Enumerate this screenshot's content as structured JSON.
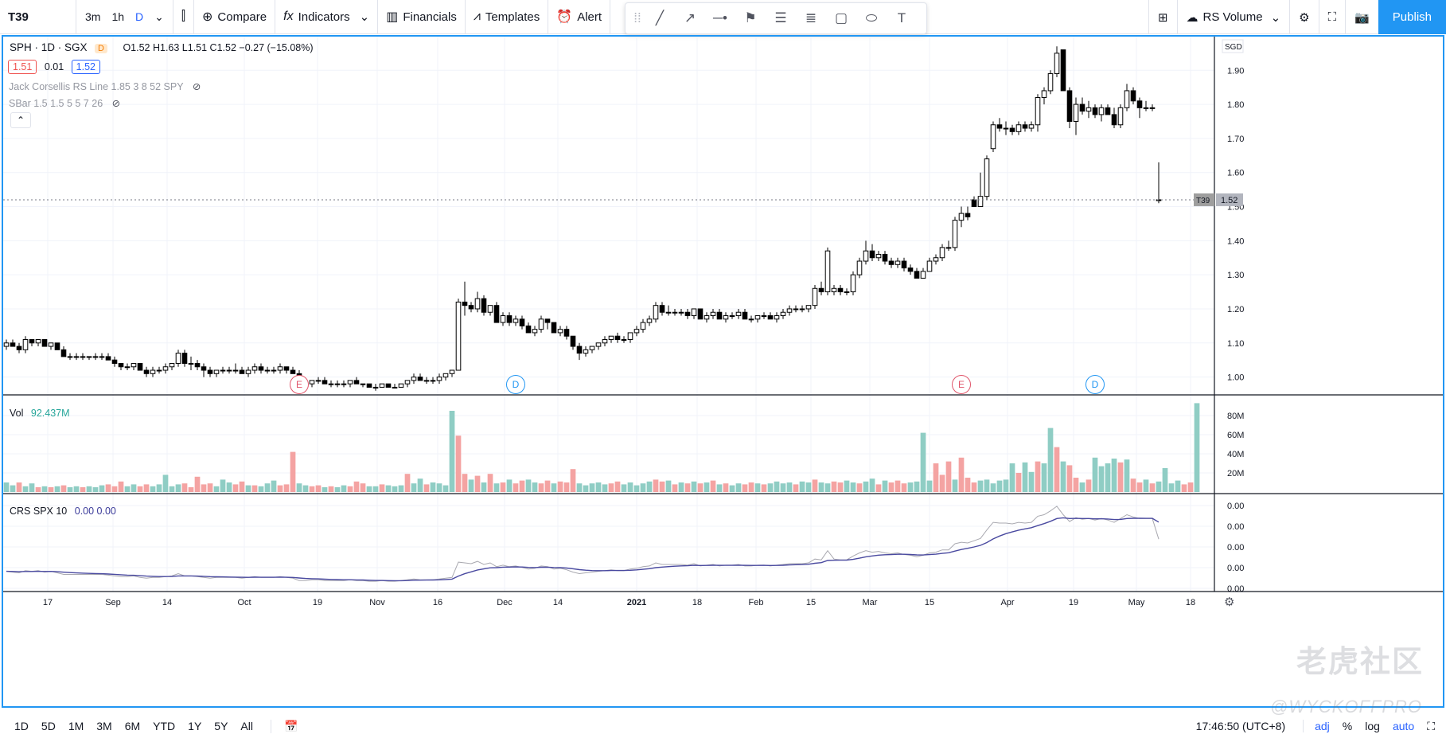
{
  "toolbar": {
    "symbol": "T39",
    "intervals": [
      "3m",
      "1h",
      "D"
    ],
    "compare": "Compare",
    "indicators": "Indicators",
    "financials": "Financials",
    "templates": "Templates",
    "alert": "Alert",
    "rs_volume": "RS Volume",
    "publish": "Publish"
  },
  "legend": {
    "title": "SPH · 1D · SGX",
    "badge": "D",
    "ohlc": "O1.52 H1.63 L1.51 C1.52 −0.27 (−15.08%)",
    "bid": "1.51",
    "spread": "0.01",
    "ask": "1.52",
    "indicator1": "Jack Corsellis RS Line 1.85 3 8 52 SPY",
    "indicator2": "SBar 1.5 1.5 5 5 7 26",
    "vol_label": "Vol",
    "vol_value": "92.437M",
    "crs_label": "CRS SPX 10",
    "crs_values": "0.00  0.00"
  },
  "price_axis": {
    "currency": "SGD",
    "ticks": [
      "1.90",
      "1.80",
      "1.70",
      "1.60",
      "1.50",
      "1.40",
      "1.30",
      "1.20",
      "1.10",
      "1.00"
    ],
    "last_label": "T39",
    "last_value": "1.52"
  },
  "volume_axis": {
    "ticks": [
      "80M",
      "60M",
      "40M",
      "20M"
    ]
  },
  "crs_axis": {
    "ticks": [
      "0.00",
      "0.00",
      "0.00",
      "0.00",
      "0.00"
    ]
  },
  "time_axis": {
    "labels": [
      "17",
      "Sep",
      "14",
      "Oct",
      "19",
      "Nov",
      "16",
      "Dec",
      "14",
      "2021",
      "18",
      "Feb",
      "15",
      "Mar",
      "15",
      "Apr",
      "19",
      "May",
      "18"
    ]
  },
  "events": [
    "E",
    "D",
    "E",
    "D"
  ],
  "bottom": {
    "ranges": [
      "1D",
      "5D",
      "1M",
      "3M",
      "6M",
      "YTD",
      "1Y",
      "5Y",
      "All"
    ],
    "time": "17:46:50 (UTC+8)",
    "adj": "adj",
    "percent": "%",
    "log": "log",
    "auto": "auto"
  },
  "watermark": {
    "text": "老虎社区",
    "handle": "@WYCKOFFPRO"
  },
  "colors": {
    "accent": "#2196f3",
    "up_volume": "#26a69a",
    "down_volume": "#ef5350",
    "crs_line": "#3b3b9a"
  },
  "chart_data": {
    "type": "candlestick",
    "symbol": "T39",
    "price_range": [
      0.95,
      1.98
    ],
    "candles": [
      [
        1.09,
        1.11,
        1.08,
        1.1
      ],
      [
        1.1,
        1.11,
        1.09,
        1.09
      ],
      [
        1.09,
        1.1,
        1.07,
        1.08
      ],
      [
        1.08,
        1.12,
        1.07,
        1.11
      ],
      [
        1.11,
        1.11,
        1.09,
        1.1
      ],
      [
        1.1,
        1.11,
        1.09,
        1.11
      ],
      [
        1.11,
        1.11,
        1.09,
        1.09
      ],
      [
        1.09,
        1.1,
        1.08,
        1.1
      ],
      [
        1.1,
        1.1,
        1.08,
        1.08
      ],
      [
        1.08,
        1.09,
        1.06,
        1.06
      ],
      [
        1.06,
        1.07,
        1.05,
        1.06
      ],
      [
        1.06,
        1.07,
        1.05,
        1.06
      ],
      [
        1.06,
        1.07,
        1.05,
        1.06
      ],
      [
        1.06,
        1.06,
        1.05,
        1.06
      ],
      [
        1.06,
        1.07,
        1.05,
        1.06
      ],
      [
        1.06,
        1.07,
        1.05,
        1.06
      ],
      [
        1.06,
        1.07,
        1.05,
        1.05
      ],
      [
        1.05,
        1.06,
        1.03,
        1.04
      ],
      [
        1.04,
        1.04,
        1.02,
        1.03
      ],
      [
        1.03,
        1.04,
        1.02,
        1.03
      ],
      [
        1.03,
        1.04,
        1.02,
        1.04
      ],
      [
        1.04,
        1.04,
        1.02,
        1.02
      ],
      [
        1.02,
        1.03,
        1.0,
        1.01
      ],
      [
        1.01,
        1.03,
        1.0,
        1.02
      ],
      [
        1.02,
        1.03,
        1.01,
        1.02
      ],
      [
        1.02,
        1.04,
        1.01,
        1.03
      ],
      [
        1.03,
        1.04,
        1.02,
        1.04
      ],
      [
        1.04,
        1.08,
        1.03,
        1.07
      ],
      [
        1.07,
        1.08,
        1.03,
        1.04
      ],
      [
        1.04,
        1.06,
        1.02,
        1.04
      ],
      [
        1.04,
        1.05,
        1.02,
        1.03
      ],
      [
        1.03,
        1.04,
        1.0,
        1.02
      ],
      [
        1.02,
        1.03,
        1.0,
        1.01
      ],
      [
        1.01,
        1.02,
        1.0,
        1.02
      ],
      [
        1.02,
        1.03,
        1.01,
        1.02
      ],
      [
        1.02,
        1.03,
        1.01,
        1.02
      ],
      [
        1.02,
        1.04,
        1.01,
        1.02
      ],
      [
        1.02,
        1.03,
        1.01,
        1.01
      ],
      [
        1.01,
        1.03,
        1.0,
        1.02
      ],
      [
        1.02,
        1.04,
        1.01,
        1.03
      ],
      [
        1.03,
        1.04,
        1.01,
        1.02
      ],
      [
        1.02,
        1.03,
        1.01,
        1.02
      ],
      [
        1.02,
        1.03,
        1.01,
        1.02
      ],
      [
        1.02,
        1.04,
        1.01,
        1.03
      ],
      [
        1.03,
        1.03,
        1.01,
        1.02
      ],
      [
        1.02,
        1.03,
        1.01,
        1.01
      ],
      [
        1.01,
        1.02,
        0.97,
        0.98
      ],
      [
        0.98,
        0.99,
        0.97,
        0.98
      ],
      [
        0.98,
        0.99,
        0.97,
        0.99
      ],
      [
        0.99,
        1.0,
        0.98,
        0.99
      ],
      [
        0.99,
        1.0,
        0.98,
        0.98
      ],
      [
        0.98,
        0.99,
        0.97,
        0.98
      ],
      [
        0.98,
        0.99,
        0.97,
        0.98
      ],
      [
        0.98,
        0.99,
        0.97,
        0.98
      ],
      [
        0.98,
        0.99,
        0.97,
        0.99
      ],
      [
        0.99,
        1.0,
        0.98,
        0.98
      ],
      [
        0.98,
        0.98,
        0.97,
        0.98
      ],
      [
        0.98,
        0.98,
        0.97,
        0.97
      ],
      [
        0.97,
        0.98,
        0.96,
        0.97
      ],
      [
        0.97,
        0.98,
        0.97,
        0.98
      ],
      [
        0.98,
        0.98,
        0.97,
        0.97
      ],
      [
        0.97,
        0.98,
        0.97,
        0.97
      ],
      [
        0.97,
        0.98,
        0.97,
        0.98
      ],
      [
        0.98,
        0.99,
        0.97,
        0.99
      ],
      [
        0.99,
        1.01,
        0.98,
        1.0
      ],
      [
        1.0,
        1.01,
        0.99,
        0.99
      ],
      [
        0.99,
        1.0,
        0.98,
        0.99
      ],
      [
        0.99,
        1.0,
        0.98,
        0.99
      ],
      [
        0.99,
        1.01,
        0.98,
        1.0
      ],
      [
        1.0,
        1.01,
        0.99,
        1.01
      ],
      [
        1.01,
        1.02,
        1.0,
        1.02
      ],
      [
        1.02,
        1.23,
        1.02,
        1.22
      ],
      [
        1.22,
        1.28,
        1.18,
        1.21
      ],
      [
        1.21,
        1.22,
        1.19,
        1.2
      ],
      [
        1.2,
        1.25,
        1.19,
        1.23
      ],
      [
        1.23,
        1.24,
        1.18,
        1.19
      ],
      [
        1.19,
        1.21,
        1.18,
        1.21
      ],
      [
        1.21,
        1.22,
        1.16,
        1.16
      ],
      [
        1.16,
        1.19,
        1.15,
        1.18
      ],
      [
        1.18,
        1.19,
        1.15,
        1.16
      ],
      [
        1.16,
        1.18,
        1.15,
        1.17
      ],
      [
        1.17,
        1.18,
        1.14,
        1.15
      ],
      [
        1.15,
        1.16,
        1.13,
        1.13
      ],
      [
        1.13,
        1.15,
        1.12,
        1.14
      ],
      [
        1.14,
        1.18,
        1.13,
        1.17
      ],
      [
        1.17,
        1.17,
        1.14,
        1.16
      ],
      [
        1.16,
        1.16,
        1.13,
        1.13
      ],
      [
        1.13,
        1.15,
        1.12,
        1.14
      ],
      [
        1.14,
        1.15,
        1.11,
        1.12
      ],
      [
        1.12,
        1.12,
        1.08,
        1.09
      ],
      [
        1.09,
        1.1,
        1.05,
        1.07
      ],
      [
        1.07,
        1.09,
        1.06,
        1.08
      ],
      [
        1.08,
        1.09,
        1.07,
        1.09
      ],
      [
        1.09,
        1.1,
        1.08,
        1.1
      ],
      [
        1.1,
        1.12,
        1.09,
        1.11
      ],
      [
        1.11,
        1.12,
        1.1,
        1.12
      ],
      [
        1.12,
        1.13,
        1.1,
        1.11
      ],
      [
        1.11,
        1.12,
        1.1,
        1.11
      ],
      [
        1.11,
        1.13,
        1.1,
        1.13
      ],
      [
        1.13,
        1.15,
        1.12,
        1.14
      ],
      [
        1.14,
        1.17,
        1.13,
        1.16
      ],
      [
        1.16,
        1.18,
        1.15,
        1.17
      ],
      [
        1.17,
        1.22,
        1.16,
        1.21
      ],
      [
        1.21,
        1.22,
        1.18,
        1.19
      ],
      [
        1.19,
        1.21,
        1.18,
        1.19
      ],
      [
        1.19,
        1.2,
        1.18,
        1.19
      ],
      [
        1.19,
        1.2,
        1.18,
        1.19
      ],
      [
        1.19,
        1.2,
        1.17,
        1.18
      ],
      [
        1.18,
        1.2,
        1.17,
        1.2
      ],
      [
        1.2,
        1.2,
        1.17,
        1.17
      ],
      [
        1.17,
        1.19,
        1.16,
        1.18
      ],
      [
        1.18,
        1.2,
        1.17,
        1.19
      ],
      [
        1.19,
        1.2,
        1.17,
        1.17
      ],
      [
        1.17,
        1.19,
        1.16,
        1.18
      ],
      [
        1.18,
        1.19,
        1.17,
        1.18
      ],
      [
        1.18,
        1.2,
        1.17,
        1.19
      ],
      [
        1.19,
        1.2,
        1.17,
        1.17
      ],
      [
        1.17,
        1.18,
        1.16,
        1.17
      ],
      [
        1.17,
        1.18,
        1.16,
        1.18
      ],
      [
        1.18,
        1.19,
        1.17,
        1.18
      ],
      [
        1.18,
        1.19,
        1.17,
        1.17
      ],
      [
        1.17,
        1.19,
        1.16,
        1.18
      ],
      [
        1.18,
        1.2,
        1.17,
        1.19
      ],
      [
        1.19,
        1.21,
        1.18,
        1.2
      ],
      [
        1.2,
        1.21,
        1.19,
        1.2
      ],
      [
        1.2,
        1.21,
        1.19,
        1.2
      ],
      [
        1.2,
        1.21,
        1.19,
        1.21
      ],
      [
        1.21,
        1.27,
        1.2,
        1.26
      ],
      [
        1.26,
        1.28,
        1.24,
        1.25
      ],
      [
        1.25,
        1.38,
        1.24,
        1.37
      ],
      [
        1.25,
        1.27,
        1.24,
        1.26
      ],
      [
        1.26,
        1.27,
        1.24,
        1.25
      ],
      [
        1.25,
        1.26,
        1.24,
        1.25
      ],
      [
        1.25,
        1.31,
        1.24,
        1.3
      ],
      [
        1.3,
        1.35,
        1.29,
        1.34
      ],
      [
        1.34,
        1.4,
        1.33,
        1.37
      ],
      [
        1.37,
        1.39,
        1.34,
        1.35
      ],
      [
        1.35,
        1.37,
        1.34,
        1.36
      ],
      [
        1.36,
        1.37,
        1.33,
        1.34
      ],
      [
        1.34,
        1.35,
        1.32,
        1.33
      ],
      [
        1.33,
        1.35,
        1.32,
        1.34
      ],
      [
        1.34,
        1.35,
        1.31,
        1.32
      ],
      [
        1.32,
        1.33,
        1.3,
        1.31
      ],
      [
        1.31,
        1.32,
        1.29,
        1.29
      ],
      [
        1.29,
        1.32,
        1.29,
        1.31
      ],
      [
        1.31,
        1.35,
        1.31,
        1.34
      ],
      [
        1.34,
        1.36,
        1.33,
        1.35
      ],
      [
        1.35,
        1.39,
        1.34,
        1.38
      ],
      [
        1.38,
        1.4,
        1.37,
        1.38
      ],
      [
        1.38,
        1.47,
        1.37,
        1.46
      ],
      [
        1.46,
        1.5,
        1.44,
        1.48
      ],
      [
        1.48,
        1.5,
        1.46,
        1.47
      ],
      [
        1.52,
        1.53,
        1.5,
        1.5
      ],
      [
        1.5,
        1.6,
        1.5,
        1.53
      ],
      [
        1.53,
        1.65,
        1.52,
        1.64
      ],
      [
        1.67,
        1.75,
        1.66,
        1.74
      ],
      [
        1.74,
        1.76,
        1.72,
        1.73
      ],
      [
        1.73,
        1.75,
        1.71,
        1.73
      ],
      [
        1.73,
        1.74,
        1.71,
        1.72
      ],
      [
        1.72,
        1.75,
        1.71,
        1.74
      ],
      [
        1.74,
        1.75,
        1.72,
        1.73
      ],
      [
        1.73,
        1.75,
        1.72,
        1.74
      ],
      [
        1.74,
        1.83,
        1.72,
        1.82
      ],
      [
        1.82,
        1.85,
        1.8,
        1.84
      ],
      [
        1.84,
        1.9,
        1.83,
        1.89
      ],
      [
        1.89,
        1.97,
        1.88,
        1.95
      ],
      [
        1.96,
        1.96,
        1.84,
        1.84
      ],
      [
        1.84,
        1.85,
        1.73,
        1.75
      ],
      [
        1.75,
        1.82,
        1.71,
        1.8
      ],
      [
        1.8,
        1.82,
        1.77,
        1.78
      ],
      [
        1.78,
        1.81,
        1.76,
        1.79
      ],
      [
        1.79,
        1.8,
        1.76,
        1.77
      ],
      [
        1.77,
        1.8,
        1.75,
        1.79
      ],
      [
        1.79,
        1.8,
        1.77,
        1.77
      ],
      [
        1.77,
        1.79,
        1.73,
        1.74
      ],
      [
        1.74,
        1.8,
        1.73,
        1.79
      ],
      [
        1.79,
        1.86,
        1.78,
        1.84
      ],
      [
        1.84,
        1.85,
        1.8,
        1.81
      ],
      [
        1.81,
        1.82,
        1.76,
        1.79
      ],
      [
        1.79,
        1.81,
        1.78,
        1.79
      ],
      [
        1.79,
        1.8,
        1.78,
        1.79
      ],
      [
        1.52,
        1.63,
        1.51,
        1.52
      ]
    ],
    "volume_millions": [
      10,
      7,
      10,
      6,
      9,
      5,
      6,
      5,
      6,
      7,
      5,
      6,
      5,
      6,
      5,
      7,
      8,
      6,
      11,
      6,
      8,
      6,
      8,
      6,
      8,
      18,
      6,
      8,
      9,
      5,
      16,
      8,
      9,
      6,
      13,
      10,
      8,
      11,
      7,
      7,
      6,
      9,
      12,
      7,
      8,
      42,
      9,
      7,
      6,
      7,
      5,
      6,
      5,
      7,
      6,
      11,
      9,
      6,
      6,
      8,
      7,
      6,
      7,
      19,
      9,
      14,
      8,
      10,
      9,
      7,
      85,
      59,
      19,
      13,
      17,
      10,
      19,
      9,
      10,
      13,
      9,
      12,
      13,
      10,
      9,
      12,
      9,
      11,
      10,
      24,
      9,
      7,
      9,
      10,
      8,
      9,
      11,
      8,
      10,
      7,
      9,
      11,
      13,
      11,
      12,
      8,
      10,
      9,
      11,
      9,
      10,
      12,
      8,
      9,
      7,
      9,
      8,
      10,
      9,
      8,
      9,
      11,
      9,
      10,
      8,
      11,
      10,
      13,
      10,
      9,
      11,
      10,
      12,
      10,
      9,
      11,
      14,
      8,
      12,
      10,
      12,
      9,
      10,
      11,
      62,
      12,
      30,
      18,
      32,
      13,
      36,
      15,
      10,
      12,
      13,
      9,
      12,
      13,
      30,
      20,
      31,
      21,
      32,
      30,
      67,
      47,
      32,
      28,
      15,
      10,
      13,
      36,
      27,
      30,
      35,
      31,
      34,
      14,
      10,
      13,
      9,
      11,
      25,
      9,
      12,
      8,
      10,
      93
    ],
    "volume_down": [
      false,
      false,
      true,
      false,
      false,
      true,
      false,
      true,
      false,
      true,
      false,
      false,
      true,
      false,
      false,
      false,
      true,
      true,
      true,
      false,
      false,
      true,
      true,
      false,
      false,
      false,
      false,
      false,
      true,
      true,
      true,
      true,
      true,
      false,
      false,
      false,
      true,
      true,
      false,
      true,
      false,
      false,
      false,
      true,
      true,
      true,
      false,
      false,
      true,
      true,
      false,
      true,
      false,
      false,
      true,
      true,
      true,
      false,
      false,
      true,
      false,
      false,
      false,
      true,
      false,
      false,
      true,
      false,
      false,
      false,
      false,
      true,
      true,
      false,
      true,
      false,
      true,
      false,
      true,
      false,
      true,
      true,
      false,
      false,
      true,
      true,
      false,
      true,
      true,
      true,
      false,
      false,
      false,
      false,
      false,
      true,
      true,
      false,
      false,
      false,
      false,
      false,
      true,
      true,
      false,
      true,
      false,
      true,
      false,
      true,
      false,
      true,
      false,
      true,
      false,
      false,
      true,
      true,
      false,
      true,
      false,
      false,
      false,
      false,
      true,
      false,
      false,
      true,
      false,
      false,
      true,
      true,
      false,
      false,
      true,
      false,
      false,
      true,
      false,
      true,
      true,
      true,
      false,
      false,
      false,
      false,
      true,
      true,
      true,
      false,
      true,
      true,
      true,
      false,
      false,
      false,
      false,
      false,
      false,
      true,
      false,
      false,
      true,
      false,
      false,
      true,
      false,
      true,
      true,
      false,
      true,
      false,
      false,
      false,
      false,
      true,
      false,
      true,
      true,
      false,
      true,
      false,
      false,
      false,
      false,
      true,
      true,
      false
    ],
    "events": [
      {
        "label": "E",
        "index": 46
      },
      {
        "label": "D",
        "index": 80
      },
      {
        "label": "E",
        "index": 150
      },
      {
        "label": "D",
        "index": 171
      }
    ]
  }
}
